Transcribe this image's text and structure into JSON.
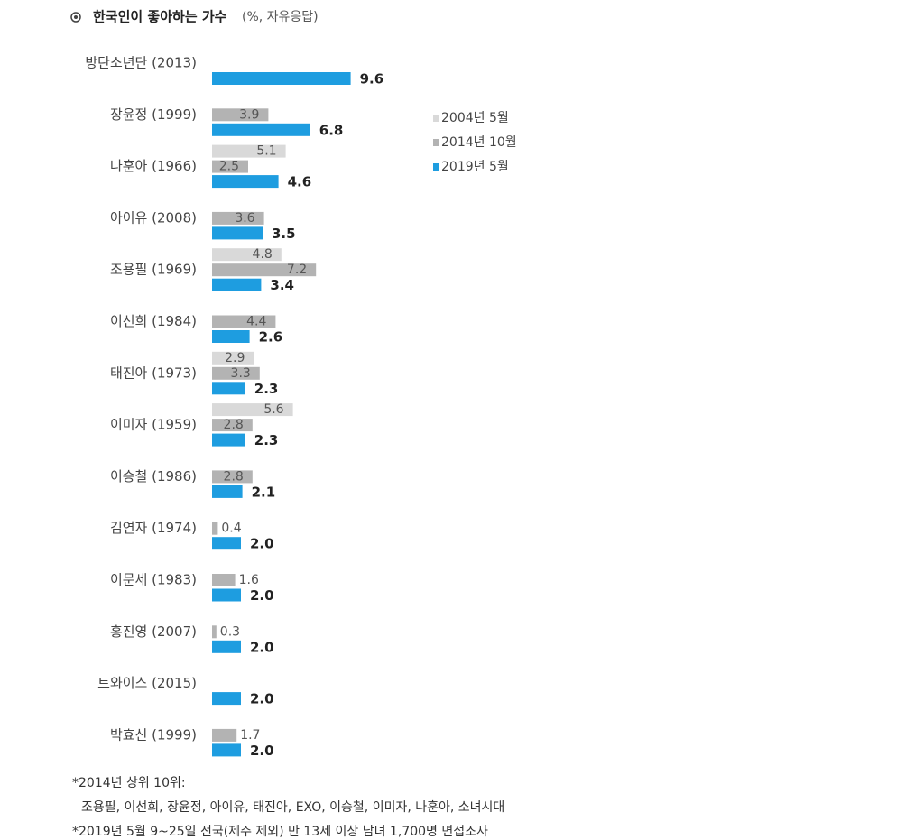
{
  "chart_data": {
    "type": "grouped-hbar",
    "title": "한국인이 좋아하는 가수",
    "subtitle": "(%, 자유응답)",
    "categories": [
      "방탄소년단 (2013)",
      "장윤정 (1999)",
      "나훈아 (1966)",
      "아이유 (2008)",
      "조용필 (1969)",
      "이선희 (1984)",
      "태진아 (1973)",
      "이미자 (1959)",
      "이승철 (1986)",
      "김연자 (1974)",
      "이문세 (1983)",
      "홍진영 (2007)",
      "트와이스 (2015)",
      "박효신 (1999)"
    ],
    "series": [
      {
        "name": "2004년 5월",
        "color": "#d9d9d9",
        "values": [
          null,
          null,
          5.1,
          null,
          4.8,
          null,
          2.9,
          5.6,
          null,
          null,
          null,
          null,
          null,
          null
        ]
      },
      {
        "name": "2014년 10월",
        "color": "#b3b3b3",
        "values": [
          null,
          3.9,
          2.5,
          3.6,
          7.2,
          4.4,
          3.3,
          2.8,
          2.8,
          0.4,
          1.6,
          0.3,
          null,
          1.7
        ]
      },
      {
        "name": "2019년 5월",
        "color": "#1e9de0",
        "values": [
          9.6,
          6.8,
          4.6,
          3.5,
          3.4,
          2.6,
          2.3,
          2.3,
          2.1,
          2,
          2,
          2,
          2,
          2
        ],
        "value_labels": [
          "9.6",
          "6.8",
          "4.6",
          "3.5",
          "3.4",
          "2.6",
          "2.3",
          "2.3",
          "2.1",
          "2.0",
          "2.0",
          "2.0",
          "2.0",
          "2.0"
        ]
      }
    ],
    "legend": "upper right",
    "notes": [
      "*2014년 상위 10위:",
      "조용필, 이선희, 장윤정, 아이유, 태진아, EXO, 이승철, 이미자, 나훈아, 소녀시대",
      "*2019년 5월 9~25일 전국(제주 제외) 만 13세 이상 남녀 1,700명 면접조사"
    ]
  }
}
